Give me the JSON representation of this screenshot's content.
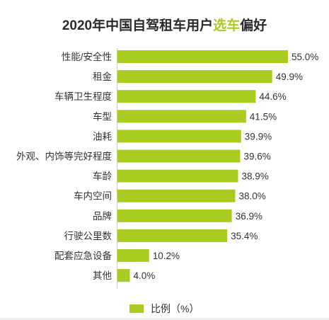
{
  "chart_data": {
    "type": "bar",
    "orientation": "horizontal",
    "title": "2020年中国自驾租车用户选车偏好",
    "title_parts": [
      "2020年中国自驾租车用户",
      "选车",
      "偏好"
    ],
    "categories": [
      "性能/安全性",
      "租金",
      "车辆卫生程度",
      "车型",
      "油耗",
      "外观、内饰等完好程度",
      "车龄",
      "车内空间",
      "品牌",
      "行驶公里数",
      "配套应急设备",
      "其他"
    ],
    "series": [
      {
        "name": "比例（%）",
        "values": [
          55.0,
          49.9,
          44.6,
          41.5,
          39.9,
          39.6,
          38.9,
          38.0,
          36.9,
          35.4,
          10.2,
          4.0
        ],
        "labels": [
          "55.0%",
          "49.9%",
          "44.6%",
          "41.5%",
          "39.9%",
          "39.6%",
          "38.9%",
          "38.0%",
          "36.9%",
          "35.4%",
          "10.2%",
          "4.0%"
        ]
      }
    ],
    "xlim": [
      0,
      55
    ],
    "grid": false,
    "legend_position": "bottom",
    "colors": {
      "bar": "#a8cc22",
      "title_accent": "#a8cc22"
    }
  }
}
